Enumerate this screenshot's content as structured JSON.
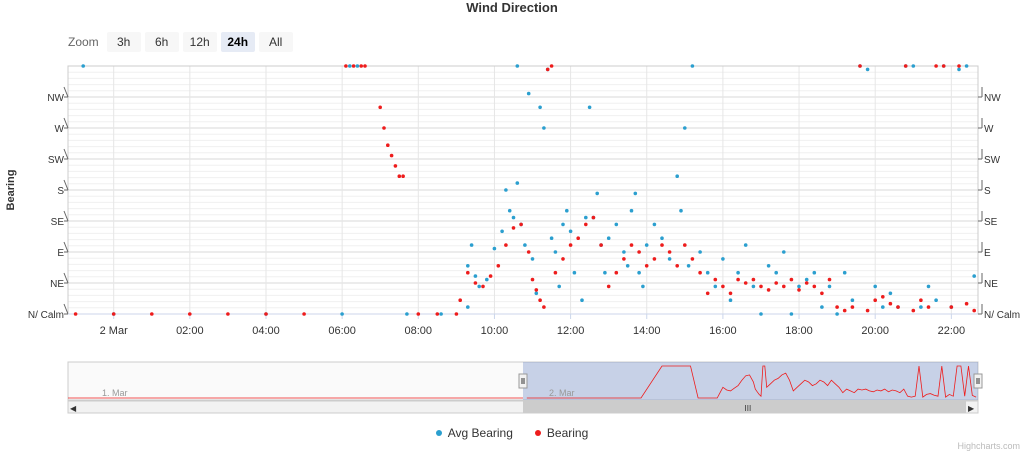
{
  "chart_data": {
    "type": "scatter",
    "title": "Wind Direction",
    "ylabel": "Bearing",
    "y_ticks": [
      {
        "value": 0,
        "label": "N/ Calm"
      },
      {
        "value": 45,
        "label": "NE"
      },
      {
        "value": 90,
        "label": "E"
      },
      {
        "value": 135,
        "label": "SE"
      },
      {
        "value": 180,
        "label": "S"
      },
      {
        "value": 225,
        "label": "SW"
      },
      {
        "value": 270,
        "label": "W"
      },
      {
        "value": 315,
        "label": "NW"
      }
    ],
    "ylim": [
      0,
      360
    ],
    "x_ticks": [
      "2 Mar",
      "02:00",
      "04:00",
      "06:00",
      "08:00",
      "10:00",
      "12:00",
      "14:00",
      "16:00",
      "18:00",
      "20:00",
      "22:00"
    ],
    "x_tick_hours": [
      0,
      2,
      4,
      6,
      8,
      10,
      12,
      14,
      16,
      18,
      20,
      22
    ],
    "xlim_hours": [
      -1.2,
      22.7
    ],
    "legend_position": "bottom-center",
    "series": [
      {
        "name": "Avg Bearing",
        "color": "#2b9fcf",
        "points": [
          [
            -0.8,
            360
          ],
          [
            0.0,
            0
          ],
          [
            4.0,
            0
          ],
          [
            6.0,
            0
          ],
          [
            6.2,
            360
          ],
          [
            6.4,
            360
          ],
          [
            7.7,
            0
          ],
          [
            8.6,
            0
          ],
          [
            9.3,
            10
          ],
          [
            9.3,
            70
          ],
          [
            9.4,
            100
          ],
          [
            9.5,
            55
          ],
          [
            9.6,
            40
          ],
          [
            9.8,
            50
          ],
          [
            10.0,
            95
          ],
          [
            10.2,
            120
          ],
          [
            10.3,
            180
          ],
          [
            10.4,
            150
          ],
          [
            10.5,
            140
          ],
          [
            10.6,
            190
          ],
          [
            10.7,
            130
          ],
          [
            10.8,
            100
          ],
          [
            10.6,
            360
          ],
          [
            10.9,
            320
          ],
          [
            11.0,
            80
          ],
          [
            11.1,
            30
          ],
          [
            11.2,
            300
          ],
          [
            11.3,
            270
          ],
          [
            11.4,
            355
          ],
          [
            11.5,
            110
          ],
          [
            11.6,
            90
          ],
          [
            11.7,
            40
          ],
          [
            11.8,
            130
          ],
          [
            11.9,
            150
          ],
          [
            12.0,
            120
          ],
          [
            12.1,
            60
          ],
          [
            12.3,
            20
          ],
          [
            12.4,
            140
          ],
          [
            12.5,
            300
          ],
          [
            12.6,
            140
          ],
          [
            12.7,
            175
          ],
          [
            12.8,
            100
          ],
          [
            12.9,
            60
          ],
          [
            13.0,
            110
          ],
          [
            13.2,
            130
          ],
          [
            13.4,
            90
          ],
          [
            13.5,
            70
          ],
          [
            13.6,
            150
          ],
          [
            13.7,
            175
          ],
          [
            13.8,
            60
          ],
          [
            13.9,
            40
          ],
          [
            14.0,
            100
          ],
          [
            14.2,
            130
          ],
          [
            14.4,
            110
          ],
          [
            14.6,
            80
          ],
          [
            14.8,
            200
          ],
          [
            15.0,
            270
          ],
          [
            14.9,
            150
          ],
          [
            15.1,
            70
          ],
          [
            15.2,
            360
          ],
          [
            15.4,
            90
          ],
          [
            15.6,
            60
          ],
          [
            15.8,
            40
          ],
          [
            16.0,
            80
          ],
          [
            16.2,
            20
          ],
          [
            16.4,
            60
          ],
          [
            16.6,
            100
          ],
          [
            16.8,
            40
          ],
          [
            17.0,
            0
          ],
          [
            17.2,
            70
          ],
          [
            17.4,
            60
          ],
          [
            17.6,
            90
          ],
          [
            17.8,
            0
          ],
          [
            18.0,
            40
          ],
          [
            18.2,
            50
          ],
          [
            18.4,
            60
          ],
          [
            18.6,
            10
          ],
          [
            18.8,
            40
          ],
          [
            19.0,
            0
          ],
          [
            19.2,
            60
          ],
          [
            19.4,
            20
          ],
          [
            19.6,
            360
          ],
          [
            19.8,
            355
          ],
          [
            20.0,
            40
          ],
          [
            20.2,
            10
          ],
          [
            20.4,
            30
          ],
          [
            20.6,
            10
          ],
          [
            20.8,
            360
          ],
          [
            21.0,
            360
          ],
          [
            21.2,
            10
          ],
          [
            21.4,
            40
          ],
          [
            21.6,
            20
          ],
          [
            21.8,
            360
          ],
          [
            22.0,
            10
          ],
          [
            22.2,
            355
          ],
          [
            22.4,
            360
          ],
          [
            22.6,
            55
          ]
        ]
      },
      {
        "name": "Bearing",
        "color": "#ee1c1c",
        "points": [
          [
            -1.0,
            0
          ],
          [
            0.0,
            0
          ],
          [
            1.0,
            0
          ],
          [
            2.0,
            0
          ],
          [
            3.0,
            0
          ],
          [
            4.0,
            0
          ],
          [
            5.0,
            0
          ],
          [
            6.1,
            360
          ],
          [
            6.3,
            360
          ],
          [
            6.5,
            360
          ],
          [
            6.6,
            360
          ],
          [
            7.0,
            300
          ],
          [
            7.1,
            270
          ],
          [
            7.2,
            245
          ],
          [
            7.3,
            230
          ],
          [
            7.4,
            215
          ],
          [
            7.5,
            200
          ],
          [
            7.6,
            200
          ],
          [
            8.0,
            0
          ],
          [
            8.5,
            0
          ],
          [
            9.0,
            0
          ],
          [
            9.1,
            20
          ],
          [
            9.3,
            60
          ],
          [
            9.5,
            45
          ],
          [
            9.7,
            40
          ],
          [
            9.9,
            55
          ],
          [
            10.1,
            70
          ],
          [
            10.3,
            100
          ],
          [
            10.5,
            125
          ],
          [
            10.7,
            130
          ],
          [
            10.9,
            90
          ],
          [
            11.0,
            50
          ],
          [
            11.1,
            35
          ],
          [
            11.2,
            20
          ],
          [
            11.3,
            10
          ],
          [
            11.4,
            355
          ],
          [
            11.5,
            360
          ],
          [
            11.6,
            60
          ],
          [
            11.8,
            80
          ],
          [
            12.0,
            100
          ],
          [
            12.2,
            110
          ],
          [
            12.4,
            130
          ],
          [
            12.6,
            140
          ],
          [
            12.8,
            100
          ],
          [
            13.0,
            40
          ],
          [
            13.2,
            60
          ],
          [
            13.4,
            80
          ],
          [
            13.6,
            100
          ],
          [
            13.8,
            90
          ],
          [
            14.0,
            70
          ],
          [
            14.2,
            80
          ],
          [
            14.4,
            100
          ],
          [
            14.6,
            90
          ],
          [
            14.8,
            70
          ],
          [
            15.0,
            100
          ],
          [
            15.2,
            80
          ],
          [
            15.4,
            60
          ],
          [
            15.6,
            30
          ],
          [
            15.8,
            50
          ],
          [
            16.0,
            40
          ],
          [
            16.2,
            30
          ],
          [
            16.4,
            50
          ],
          [
            16.6,
            45
          ],
          [
            16.8,
            50
          ],
          [
            17.0,
            40
          ],
          [
            17.2,
            35
          ],
          [
            17.4,
            45
          ],
          [
            17.6,
            40
          ],
          [
            17.8,
            50
          ],
          [
            18.0,
            35
          ],
          [
            18.2,
            45
          ],
          [
            18.4,
            40
          ],
          [
            18.6,
            30
          ],
          [
            18.8,
            50
          ],
          [
            19.0,
            10
          ],
          [
            19.2,
            5
          ],
          [
            19.4,
            10
          ],
          [
            19.6,
            360
          ],
          [
            19.8,
            5
          ],
          [
            20.0,
            20
          ],
          [
            20.2,
            25
          ],
          [
            20.4,
            15
          ],
          [
            20.6,
            10
          ],
          [
            20.8,
            360
          ],
          [
            21.0,
            5
          ],
          [
            21.2,
            20
          ],
          [
            21.4,
            10
          ],
          [
            21.6,
            360
          ],
          [
            21.8,
            360
          ],
          [
            22.0,
            10
          ],
          [
            22.2,
            360
          ],
          [
            22.4,
            15
          ],
          [
            22.6,
            5
          ]
        ]
      }
    ]
  },
  "zoom": {
    "label": "Zoom",
    "buttons": [
      {
        "label": "3h",
        "active": false
      },
      {
        "label": "6h",
        "active": false
      },
      {
        "label": "12h",
        "active": false
      },
      {
        "label": "24h",
        "active": true
      },
      {
        "label": "All",
        "active": false
      }
    ]
  },
  "navigator": {
    "labels": [
      "1. Mar",
      "2. Mar"
    ],
    "selected_range_fraction": [
      0.5,
      1.0
    ]
  },
  "legend": {
    "items": [
      {
        "name": "Avg Bearing",
        "color": "#2b9fcf"
      },
      {
        "name": "Bearing",
        "color": "#ee1c1c"
      }
    ]
  },
  "credits": "Highcharts.com"
}
